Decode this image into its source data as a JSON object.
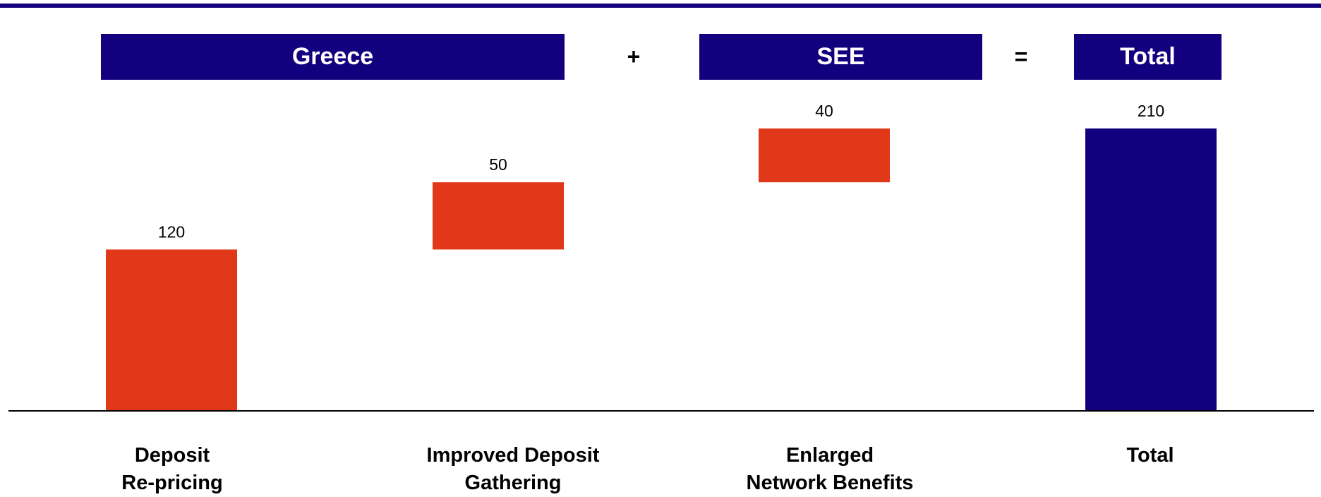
{
  "header": {
    "groups": [
      {
        "label": "Greece"
      },
      {
        "label": "SEE"
      },
      {
        "label": "Total"
      }
    ],
    "operators": [
      "+",
      "="
    ]
  },
  "colors": {
    "navy": "#12007f",
    "increment": "#e03819",
    "axis": "#000000"
  },
  "chart_data": {
    "type": "bar",
    "subtype": "waterfall",
    "title": "",
    "xlabel": "",
    "ylabel": "",
    "ylim": [
      0,
      250
    ],
    "categories": [
      "Deposit\nRe-pricing",
      "Improved Deposit\nGathering",
      "Enlarged\nNetwork Benefits",
      "Total"
    ],
    "values": [
      120,
      50,
      40,
      210
    ],
    "bar_kinds": [
      "increment",
      "increment",
      "increment",
      "total"
    ],
    "data_labels": [
      "120",
      "50",
      "40",
      "210"
    ],
    "grid": false,
    "legend": "none"
  }
}
